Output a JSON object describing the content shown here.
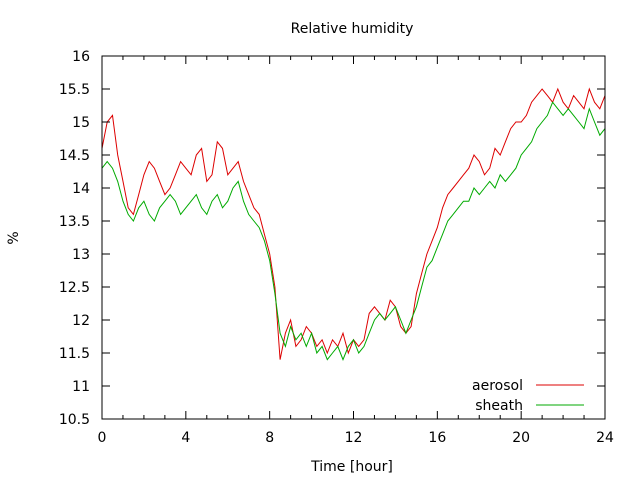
{
  "chart_data": {
    "type": "line",
    "title": "Relative humidity",
    "xlabel": "Time [hour]",
    "ylabel": "%",
    "xlim": [
      0,
      24
    ],
    "ylim": [
      10.5,
      16
    ],
    "xticks": [
      0,
      4,
      8,
      12,
      16,
      20,
      24
    ],
    "yticks": [
      10.5,
      11,
      11.5,
      12,
      12.5,
      13,
      13.5,
      14,
      14.5,
      15,
      15.5,
      16
    ],
    "grid": false,
    "legend_position": "bottom-right",
    "series": [
      {
        "name": "aerosol",
        "color": "#dd0000",
        "x": [
          0,
          0.25,
          0.5,
          0.75,
          1,
          1.25,
          1.5,
          1.75,
          2,
          2.25,
          2.5,
          2.75,
          3,
          3.25,
          3.5,
          3.75,
          4,
          4.25,
          4.5,
          4.75,
          5,
          5.25,
          5.5,
          5.75,
          6,
          6.25,
          6.5,
          6.75,
          7,
          7.25,
          7.5,
          7.75,
          8,
          8.25,
          8.5,
          8.75,
          9,
          9.25,
          9.5,
          9.75,
          10,
          10.25,
          10.5,
          10.75,
          11,
          11.25,
          11.5,
          11.75,
          12,
          12.25,
          12.5,
          12.75,
          13,
          13.25,
          13.5,
          13.75,
          14,
          14.25,
          14.5,
          14.75,
          15,
          15.25,
          15.5,
          15.75,
          16,
          16.25,
          16.5,
          16.75,
          17,
          17.25,
          17.5,
          17.75,
          18,
          18.25,
          18.5,
          18.75,
          19,
          19.25,
          19.5,
          19.75,
          20,
          20.25,
          20.5,
          20.75,
          21,
          21.25,
          21.5,
          21.75,
          22,
          22.25,
          22.5,
          22.75,
          23,
          23.25,
          23.5,
          23.75,
          24
        ],
        "y": [
          14.6,
          15,
          15.1,
          14.5,
          14.1,
          13.7,
          13.6,
          13.9,
          14.2,
          14.4,
          14.3,
          14.1,
          13.9,
          14,
          14.2,
          14.4,
          14.3,
          14.2,
          14.5,
          14.6,
          14.1,
          14.2,
          14.7,
          14.6,
          14.2,
          14.3,
          14.4,
          14.1,
          13.9,
          13.7,
          13.6,
          13.3,
          13,
          12.5,
          11.4,
          11.8,
          12,
          11.6,
          11.7,
          11.9,
          11.8,
          11.6,
          11.7,
          11.5,
          11.7,
          11.6,
          11.8,
          11.5,
          11.7,
          11.6,
          11.7,
          12.1,
          12.2,
          12.1,
          12,
          12.3,
          12.2,
          11.9,
          11.8,
          11.9,
          12.4,
          12.7,
          13,
          13.2,
          13.4,
          13.7,
          13.9,
          14,
          14.1,
          14.2,
          14.3,
          14.5,
          14.4,
          14.2,
          14.3,
          14.6,
          14.5,
          14.7,
          14.9,
          15,
          15,
          15.1,
          15.3,
          15.4,
          15.5,
          15.4,
          15.3,
          15.5,
          15.3,
          15.2,
          15.4,
          15.3,
          15.2,
          15.5,
          15.3,
          15.2,
          15.4
        ]
      },
      {
        "name": "sheath",
        "color": "#00aa00",
        "x": [
          0,
          0.25,
          0.5,
          0.75,
          1,
          1.25,
          1.5,
          1.75,
          2,
          2.25,
          2.5,
          2.75,
          3,
          3.25,
          3.5,
          3.75,
          4,
          4.25,
          4.5,
          4.75,
          5,
          5.25,
          5.5,
          5.75,
          6,
          6.25,
          6.5,
          6.75,
          7,
          7.25,
          7.5,
          7.75,
          8,
          8.25,
          8.5,
          8.75,
          9,
          9.25,
          9.5,
          9.75,
          10,
          10.25,
          10.5,
          10.75,
          11,
          11.25,
          11.5,
          11.75,
          12,
          12.25,
          12.5,
          12.75,
          13,
          13.25,
          13.5,
          13.75,
          14,
          14.25,
          14.5,
          14.75,
          15,
          15.25,
          15.5,
          15.75,
          16,
          16.25,
          16.5,
          16.75,
          17,
          17.25,
          17.5,
          17.75,
          18,
          18.25,
          18.5,
          18.75,
          19,
          19.25,
          19.5,
          19.75,
          20,
          20.25,
          20.5,
          20.75,
          21,
          21.25,
          21.5,
          21.75,
          22,
          22.25,
          22.5,
          22.75,
          23,
          23.25,
          23.5,
          23.75,
          24
        ],
        "y": [
          14.3,
          14.4,
          14.3,
          14.1,
          13.8,
          13.6,
          13.5,
          13.7,
          13.8,
          13.6,
          13.5,
          13.7,
          13.8,
          13.9,
          13.8,
          13.6,
          13.7,
          13.8,
          13.9,
          13.7,
          13.6,
          13.8,
          13.9,
          13.7,
          13.8,
          14,
          14.1,
          13.8,
          13.6,
          13.5,
          13.4,
          13.2,
          12.9,
          12.4,
          11.8,
          11.6,
          11.9,
          11.7,
          11.8,
          11.6,
          11.8,
          11.5,
          11.6,
          11.4,
          11.5,
          11.6,
          11.4,
          11.6,
          11.7,
          11.5,
          11.6,
          11.8,
          12,
          12.1,
          12,
          12.1,
          12.2,
          12,
          11.8,
          12,
          12.2,
          12.5,
          12.8,
          12.9,
          13.1,
          13.3,
          13.5,
          13.6,
          13.7,
          13.8,
          13.8,
          14,
          13.9,
          14,
          14.1,
          14,
          14.2,
          14.1,
          14.2,
          14.3,
          14.5,
          14.6,
          14.7,
          14.9,
          15,
          15.1,
          15.3,
          15.2,
          15.1,
          15.2,
          15.1,
          15,
          14.9,
          15.2,
          15,
          14.8,
          14.9
        ]
      }
    ]
  }
}
